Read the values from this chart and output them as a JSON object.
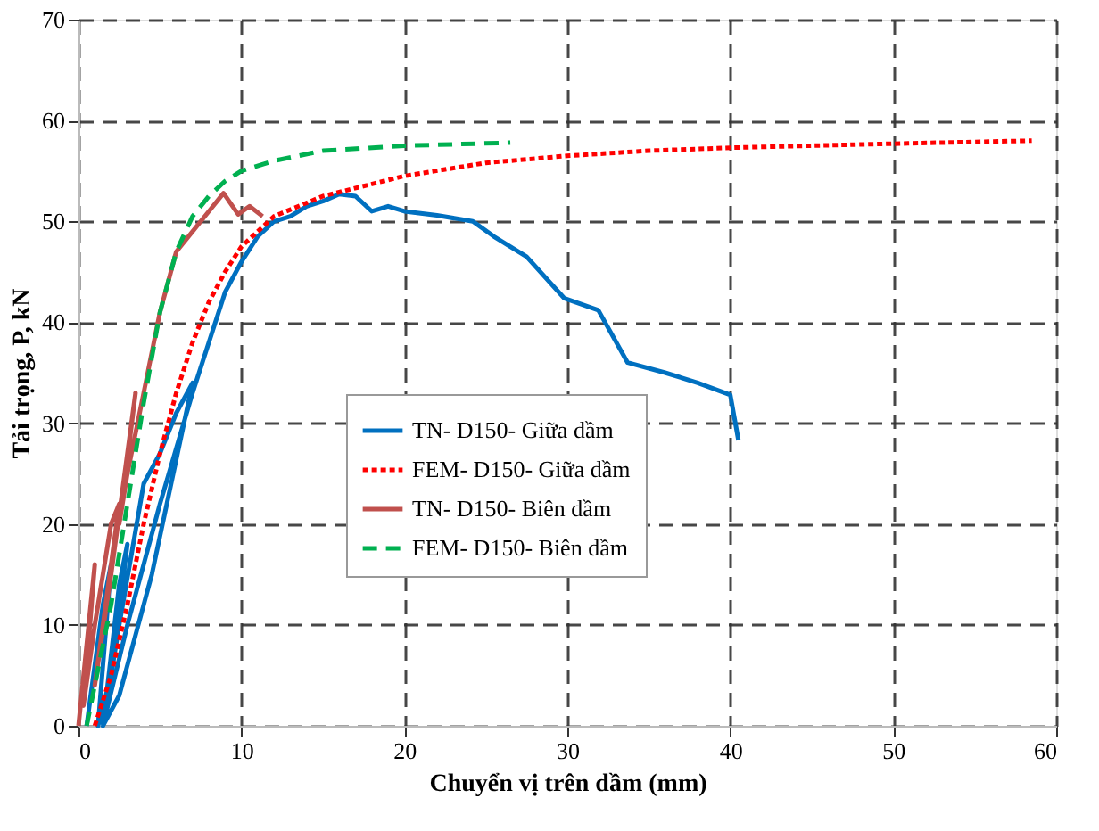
{
  "chart_data": {
    "type": "line",
    "xlabel": "Chuyển vị trên dầm (mm)",
    "ylabel": "Tải trọng, P, kN",
    "xlim": [
      0,
      60
    ],
    "xticks": [
      0,
      10,
      20,
      30,
      40,
      50,
      60
    ],
    "ylim": [
      0,
      70
    ],
    "yticks": [
      0,
      10,
      20,
      30,
      40,
      50,
      60,
      70
    ],
    "grid": true,
    "legend": "bottom",
    "series": [
      {
        "name": "TN- D150- Giữa dầm",
        "color": "#0070c0",
        "line_style": "solid",
        "x": [
          0.5,
          1.5,
          2,
          1.2,
          2,
          3,
          2.5,
          1.5,
          2.5,
          4,
          5,
          6,
          7,
          4.5,
          2.5,
          1.5,
          3,
          5,
          7,
          8,
          9,
          10,
          11,
          12,
          13,
          14,
          15,
          16,
          17,
          18,
          19,
          20,
          22,
          24.2,
          25.5,
          27.5,
          29.8,
          31.9,
          33.7,
          36,
          38,
          40,
          40.5
        ],
        "values": [
          0,
          12,
          16,
          0,
          5,
          18,
          14,
          0,
          10,
          24,
          27,
          31,
          34,
          15,
          3,
          0,
          10,
          22,
          33,
          38,
          43,
          46,
          48.5,
          50,
          50.5,
          51.5,
          52,
          52.7,
          52.5,
          51,
          51.5,
          51,
          50.6,
          50,
          48.5,
          46.5,
          42.4,
          41.2,
          36,
          35,
          34,
          32.8,
          28.3
        ]
      },
      {
        "name": "FEM- D150- Giữa dầm",
        "color": "#ff0000",
        "line_style": "dotted",
        "x": [
          1,
          2,
          3,
          4,
          5,
          6,
          7,
          8,
          9,
          10,
          12,
          15,
          20,
          25,
          30,
          35,
          40,
          45,
          50,
          58.5
        ],
        "values": [
          0,
          5,
          12,
          20,
          27,
          33,
          38,
          42,
          45,
          47.5,
          50.5,
          52.5,
          54.5,
          55.8,
          56.5,
          57,
          57.3,
          57.5,
          57.7,
          58
        ]
      },
      {
        "name": "TN- D150- Biên dầm",
        "color": "#c0504d",
        "line_style": "solid",
        "x": [
          0,
          0.5,
          1,
          0.3,
          1,
          2,
          2.5,
          1,
          2,
          3,
          3.5,
          2.5,
          3,
          4,
          5,
          6,
          7,
          8,
          8.9,
          9.8,
          10.5,
          11.3
        ],
        "values": [
          0,
          8,
          16,
          2,
          10,
          20,
          22,
          4,
          15,
          27,
          33,
          20,
          25,
          33,
          41,
          47,
          49,
          51,
          52.8,
          50.7,
          51.5,
          50.5
        ]
      },
      {
        "name": "FEM- D150- Biên dầm",
        "color": "#00b050",
        "line_style": "dashed",
        "x": [
          0.5,
          1,
          2,
          3,
          4,
          5,
          6,
          7,
          8,
          9,
          10,
          12,
          15,
          20,
          26.5
        ],
        "values": [
          0,
          4,
          12,
          22,
          32,
          41,
          47,
          50.5,
          52.5,
          54,
          55,
          56,
          57,
          57.5,
          57.8
        ]
      }
    ]
  }
}
